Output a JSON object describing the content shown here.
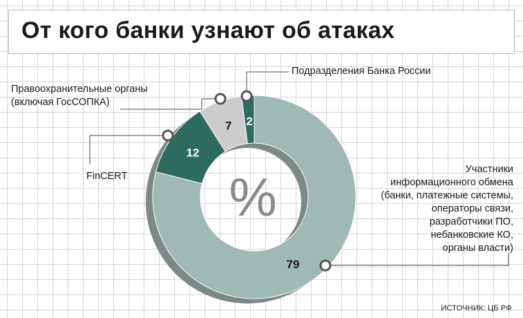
{
  "title": "От кого банки узнают об атаках",
  "center_symbol": "%",
  "source": "ИСТОЧНИК: ЦБ РФ",
  "colors": {
    "large_slice": "#9fb9b4",
    "dark_slice": "#2d6b60",
    "light_slice": "#cccccc",
    "shadow": "#7d8985"
  },
  "chart_data": {
    "type": "pie",
    "unit": "%",
    "slices": [
      {
        "label": "Участники информационного обмена (банки, платежные системы, операторы связи, разработчики ПО, небанковские КО, органы власти)",
        "value": 79,
        "color": "#9fb9b4"
      },
      {
        "label": "FinCERT",
        "value": 12,
        "color": "#2d6b60"
      },
      {
        "label": "Правоохранительные органы (включая ГосСОПКА)",
        "value": 7,
        "color": "#cccccc"
      },
      {
        "label": "Подразделения Банка России",
        "value": 2,
        "color": "#2d6b60"
      }
    ]
  },
  "labels": {
    "bank_russia": "Подразделения Банка России",
    "law_enforcement": [
      "Правоохранительные органы",
      "(включая ГосСОПКА)"
    ],
    "fincert": "FinCERT",
    "participants": [
      "Участники",
      "информационного обмена",
      "(банки, платежные системы,",
      "операторы связи,",
      "разработчики ПО,",
      "небанковские КО,",
      "органы власти)"
    ]
  }
}
